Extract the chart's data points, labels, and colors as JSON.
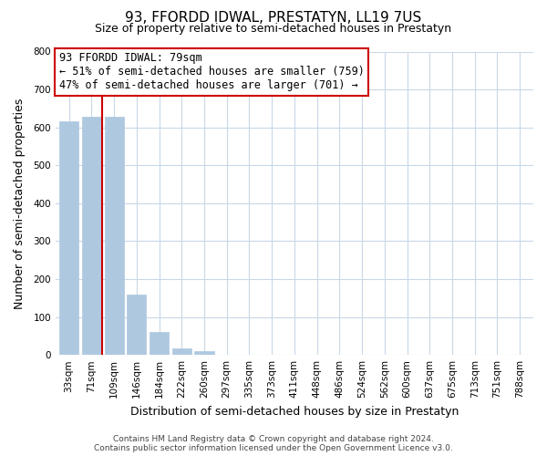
{
  "title": "93, FFORDD IDWAL, PRESTATYN, LL19 7US",
  "subtitle": "Size of property relative to semi-detached houses in Prestatyn",
  "xlabel": "Distribution of semi-detached houses by size in Prestatyn",
  "ylabel": "Number of semi-detached properties",
  "bar_labels": [
    "33sqm",
    "71sqm",
    "109sqm",
    "146sqm",
    "184sqm",
    "222sqm",
    "260sqm",
    "297sqm",
    "335sqm",
    "373sqm",
    "411sqm",
    "448sqm",
    "486sqm",
    "524sqm",
    "562sqm",
    "600sqm",
    "637sqm",
    "675sqm",
    "713sqm",
    "751sqm",
    "788sqm"
  ],
  "bar_values": [
    617,
    627,
    628,
    158,
    60,
    18,
    10,
    0,
    0,
    0,
    0,
    0,
    0,
    0,
    0,
    0,
    0,
    0,
    0,
    0,
    0
  ],
  "bar_color": "#aec8e0",
  "bar_edge_color": "#aec8e0",
  "vline_x": 1.45,
  "vline_color": "#cc0000",
  "annotation_title": "93 FFORDD IDWAL: 79sqm",
  "annotation_line1": "← 51% of semi-detached houses are smaller (759)",
  "annotation_line2": "47% of semi-detached houses are larger (701) →",
  "annotation_box_color": "#ffffff",
  "annotation_box_edge": "#cc0000",
  "ylim": [
    0,
    800
  ],
  "yticks": [
    0,
    100,
    200,
    300,
    400,
    500,
    600,
    700,
    800
  ],
  "footer_line1": "Contains HM Land Registry data © Crown copyright and database right 2024.",
  "footer_line2": "Contains public sector information licensed under the Open Government Licence v3.0.",
  "background_color": "#ffffff",
  "grid_color": "#c8d8e8",
  "title_fontsize": 11,
  "subtitle_fontsize": 9,
  "axis_label_fontsize": 9,
  "tick_fontsize": 7.5,
  "annotation_fontsize": 8.5,
  "footer_fontsize": 6.5
}
